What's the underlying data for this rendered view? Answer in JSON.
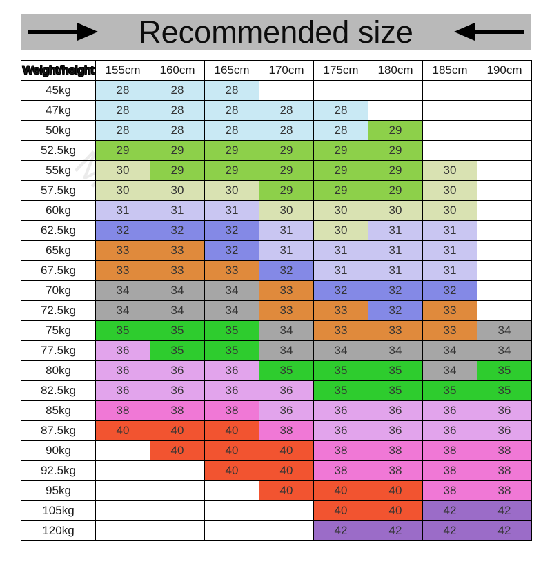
{
  "header": {
    "title": "Recommended size",
    "left_icon": "arrow-right-icon",
    "right_icon": "arrow-left-icon",
    "banner_bg": "#b9b9b9"
  },
  "watermark": "MrsFashion Store",
  "chart_data": {
    "type": "table",
    "title": "Recommended size",
    "corner_label": "Weight/height",
    "columns": [
      "155cm",
      "160cm",
      "165cm",
      "170cm",
      "175cm",
      "180cm",
      "185cm",
      "190cm"
    ],
    "rows": [
      {
        "weight": "45kg",
        "sizes": [
          "28",
          "28",
          "28",
          "",
          "",
          "",
          "",
          ""
        ]
      },
      {
        "weight": "47kg",
        "sizes": [
          "28",
          "28",
          "28",
          "28",
          "28",
          "",
          "",
          ""
        ]
      },
      {
        "weight": "50kg",
        "sizes": [
          "28",
          "28",
          "28",
          "28",
          "28",
          "29",
          "",
          ""
        ]
      },
      {
        "weight": "52.5kg",
        "sizes": [
          "29",
          "29",
          "29",
          "29",
          "29",
          "29",
          "",
          ""
        ]
      },
      {
        "weight": "55kg",
        "sizes": [
          "30",
          "29",
          "29",
          "29",
          "29",
          "29",
          "30",
          ""
        ]
      },
      {
        "weight": "57.5kg",
        "sizes": [
          "30",
          "30",
          "30",
          "29",
          "29",
          "29",
          "30",
          ""
        ]
      },
      {
        "weight": "60kg",
        "sizes": [
          "31",
          "31",
          "31",
          "30",
          "30",
          "30",
          "30",
          ""
        ]
      },
      {
        "weight": "62.5kg",
        "sizes": [
          "32",
          "32",
          "32",
          "31",
          "30",
          "31",
          "31",
          ""
        ]
      },
      {
        "weight": "65kg",
        "sizes": [
          "33",
          "33",
          "32",
          "31",
          "31",
          "31",
          "31",
          ""
        ]
      },
      {
        "weight": "67.5kg",
        "sizes": [
          "33",
          "33",
          "33",
          "32",
          "31",
          "31",
          "31",
          ""
        ]
      },
      {
        "weight": "70kg",
        "sizes": [
          "34",
          "34",
          "34",
          "33",
          "32",
          "32",
          "32",
          ""
        ]
      },
      {
        "weight": "72.5kg",
        "sizes": [
          "34",
          "34",
          "34",
          "33",
          "33",
          "32",
          "33",
          ""
        ]
      },
      {
        "weight": "75kg",
        "sizes": [
          "35",
          "35",
          "35",
          "34",
          "33",
          "33",
          "33",
          "34"
        ]
      },
      {
        "weight": "77.5kg",
        "sizes": [
          "36",
          "35",
          "35",
          "34",
          "34",
          "34",
          "34",
          "34"
        ]
      },
      {
        "weight": "80kg",
        "sizes": [
          "36",
          "36",
          "36",
          "35",
          "35",
          "35",
          "34",
          "35"
        ]
      },
      {
        "weight": "82.5kg",
        "sizes": [
          "36",
          "36",
          "36",
          "36",
          "35",
          "35",
          "35",
          "35"
        ]
      },
      {
        "weight": "85kg",
        "sizes": [
          "38",
          "38",
          "38",
          "36",
          "36",
          "36",
          "36",
          "36"
        ]
      },
      {
        "weight": "87.5kg",
        "sizes": [
          "40",
          "40",
          "40",
          "38",
          "36",
          "36",
          "36",
          "36"
        ]
      },
      {
        "weight": "90kg",
        "sizes": [
          "",
          "40",
          "40",
          "40",
          "38",
          "38",
          "38",
          "38"
        ]
      },
      {
        "weight": "92.5kg",
        "sizes": [
          "",
          "",
          "40",
          "40",
          "38",
          "38",
          "38",
          "38"
        ]
      },
      {
        "weight": "95kg",
        "sizes": [
          "",
          "",
          "",
          "40",
          "40",
          "40",
          "38",
          "38"
        ]
      },
      {
        "weight": "105kg",
        "sizes": [
          "",
          "",
          "",
          "",
          "40",
          "40",
          "42",
          "42"
        ]
      },
      {
        "weight": "120kg",
        "sizes": [
          "",
          "",
          "",
          "",
          "42",
          "42",
          "42",
          "42"
        ]
      }
    ],
    "size_colors": {
      "28": "#c9e9f4",
      "29": "#8dd04a",
      "30": "#d9e2b2",
      "31": "#c9c6f2",
      "32": "#8489e6",
      "33": "#e08a3c",
      "34": "#a6a6a6",
      "35": "#2ecc2e",
      "36": "#e2a4ec",
      "38": "#f078d6",
      "40": "#f25430",
      "42": "#9b6cc8"
    },
    "colors": {
      "banner_bg": "#b9b9b9",
      "border": "#000000",
      "corner_text": "#ffe400"
    }
  }
}
